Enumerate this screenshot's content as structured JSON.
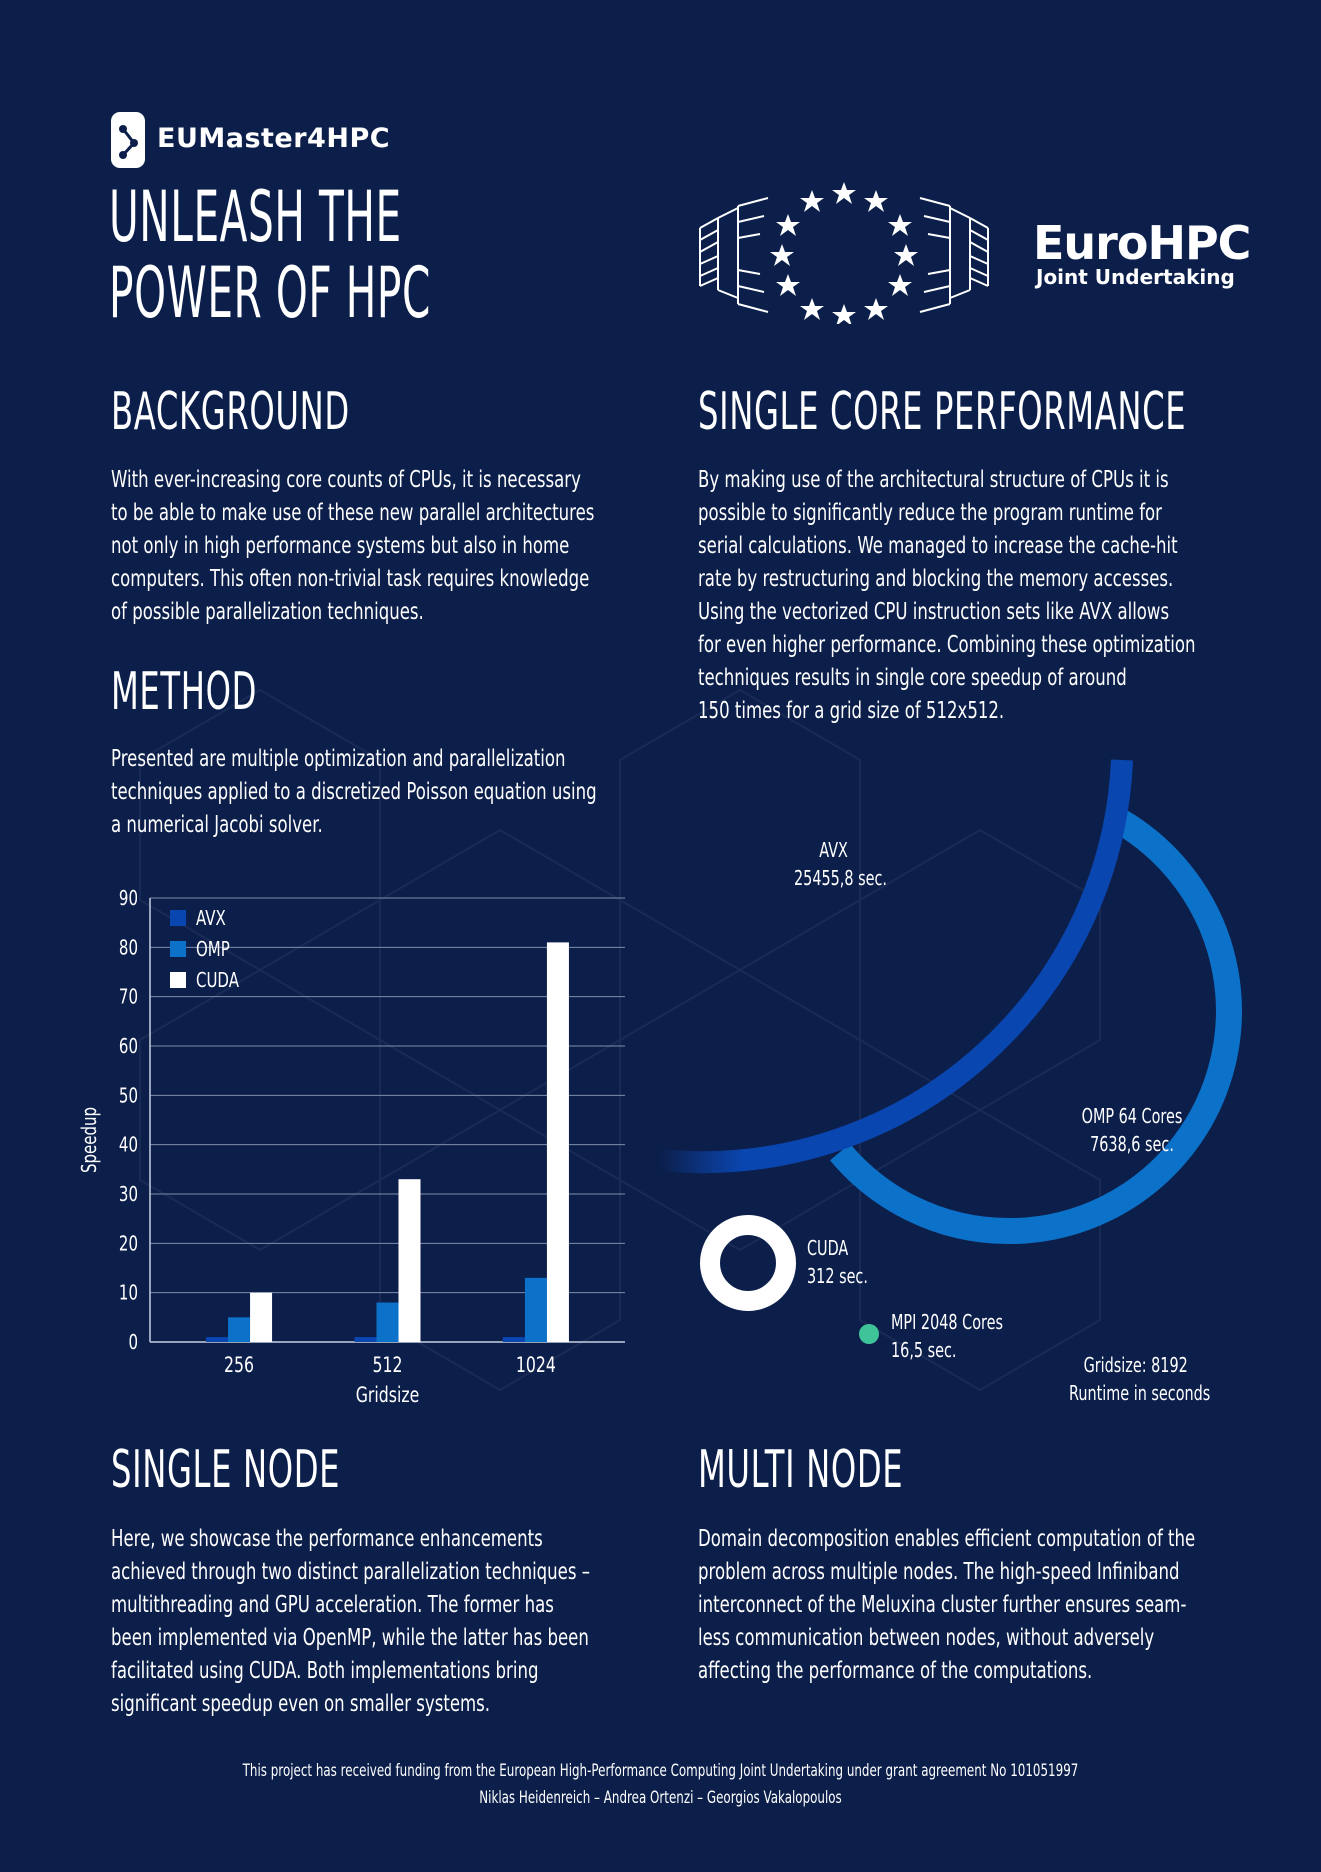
{
  "header": {
    "logo_text": "EUMaster4HPC",
    "title_line1": "UNLEASH THE",
    "title_line2": "POWER OF HPC",
    "partner_name": "EuroHPC",
    "partner_sub": "Joint Undertaking"
  },
  "background": {
    "title": "BACKGROUND",
    "lines": [
      "With ever-increasing core counts of CPUs, it is necessary",
      "to be able to make use of these new parallel architectures",
      " not only in high performance systems but also in home",
      "computers. This often non-trivial task requires knowledge",
      "of possible parallelization techniques."
    ]
  },
  "method": {
    "title": "METHOD",
    "lines": [
      "Presented are multiple optimization and parallelization",
      "techniques applied to a discretized Poisson equation using",
      "a numerical Jacobi solver."
    ]
  },
  "single_core": {
    "title": "SINGLE CORE PERFORMANCE",
    "lines": [
      "By making use of the architectural structure of CPUs it is",
      "possible to significantly reduce the program runtime for",
      "serial calculations. We managed to increase the cache-hit",
      "rate by restructuring and blocking the memory accesses.",
      "Using the vectorized CPU instruction sets like AVX allows",
      "for even higher performance. Combining these optimization",
      "techniques results in single core speedup of around",
      "150 times for a grid size of 512x512."
    ]
  },
  "single_node": {
    "title": "SINGLE NODE",
    "lines": [
      "Here, we showcase the performance enhancements",
      "achieved through two distinct parallelization techniques –",
      "multithreading and GPU acceleration. The former has",
      "been implemented via OpenMP, while the latter has been",
      "facilitated using CUDA. Both implementations bring",
      "significant speedup even on smaller systems."
    ]
  },
  "multi_node": {
    "title": "MULTI NODE",
    "lines": [
      "Domain decomposition enables efficient computation of the",
      "problem across multiple nodes. The high-speed Infiniband",
      "interconnect of the Meluxina cluster further ensures seam-",
      "less communication between nodes, without adversely",
      "affecting the performance of the computations."
    ]
  },
  "footer": {
    "funding": "This project has received funding from the European High-Performance Computing Joint Undertaking under grant agreement No 101051997",
    "authors": "Niklas Heidenreich – Andrea Ortenzi – Georgios Vakalopoulos"
  },
  "colors": {
    "background": "#0c1f4b",
    "avx": "#0a46b0",
    "omp": "#0c72c9",
    "cuda": "#ffffff",
    "mpi": "#3fc49a",
    "grid": "#7f8cab"
  },
  "chart_data": [
    {
      "type": "bar",
      "categories": [
        "256",
        "512",
        "1024"
      ],
      "series": [
        {
          "name": "AVX",
          "values": [
            1,
            1,
            1
          ]
        },
        {
          "name": "OMP",
          "values": [
            5,
            8,
            13
          ]
        },
        {
          "name": "CUDA",
          "values": [
            10,
            33,
            81
          ]
        }
      ],
      "xlabel": "Gridsize",
      "ylabel": "Speedup",
      "ylim": [
        0,
        90
      ],
      "yticks": [
        0,
        10,
        20,
        30,
        40,
        50,
        60,
        70,
        80,
        90
      ],
      "grid": true,
      "legend": "top-left"
    },
    {
      "type": "bubble",
      "items": [
        {
          "name": "AVX",
          "value": 25455.8,
          "label": "AVX",
          "value_label": "25455,8 sec."
        },
        {
          "name": "OMP 64 Cores",
          "value": 7638.6,
          "label": "OMP 64 Cores",
          "value_label": "7638,6 sec."
        },
        {
          "name": "CUDA",
          "value": 312,
          "label": "CUDA",
          "value_label": "312 sec."
        },
        {
          "name": "MPI 2048 Cores",
          "value": 16.5,
          "label": "MPI 2048 Cores",
          "value_label": "16,5 sec."
        }
      ],
      "note_line1": "Gridsize: 8192",
      "note_line2": "Runtime in seconds"
    }
  ]
}
